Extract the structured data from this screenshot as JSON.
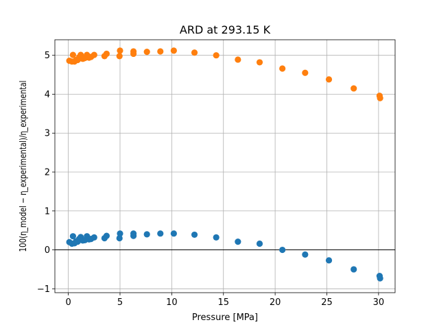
{
  "chart_data": {
    "type": "scatter",
    "title": "ARD at 293.15 K",
    "xlabel": "Pressure [MPa]",
    "ylabel": "100(η_model − η_experimental)/η_experimental",
    "xlim": [
      -1.3,
      31.6
    ],
    "ylim": [
      -1.1,
      5.4
    ],
    "xticks": [
      0,
      5,
      10,
      15,
      20,
      25,
      30
    ],
    "yticks": [
      -1,
      0,
      1,
      2,
      3,
      4,
      5
    ],
    "grid": true,
    "horizontal_reference_line": 0,
    "legend": "none",
    "series": [
      {
        "color": "#1f77b4",
        "points": [
          [
            0.1,
            0.2
          ],
          [
            0.35,
            0.16
          ],
          [
            0.45,
            0.35
          ],
          [
            0.6,
            0.17
          ],
          [
            0.75,
            0.22
          ],
          [
            0.9,
            0.21
          ],
          [
            1.05,
            0.28
          ],
          [
            1.2,
            0.33
          ],
          [
            1.4,
            0.24
          ],
          [
            1.6,
            0.25
          ],
          [
            1.8,
            0.35
          ],
          [
            2.0,
            0.27
          ],
          [
            2.2,
            0.28
          ],
          [
            2.5,
            0.32
          ],
          [
            3.5,
            0.3
          ],
          [
            3.7,
            0.36
          ],
          [
            4.95,
            0.3
          ],
          [
            5.0,
            0.42
          ],
          [
            6.3,
            0.36
          ],
          [
            6.3,
            0.42
          ],
          [
            7.6,
            0.4
          ],
          [
            8.9,
            0.42
          ],
          [
            10.2,
            0.42
          ],
          [
            12.2,
            0.39
          ],
          [
            14.3,
            0.32
          ],
          [
            16.4,
            0.21
          ],
          [
            18.5,
            0.16
          ],
          [
            20.7,
            0.0
          ],
          [
            22.9,
            -0.12
          ],
          [
            25.2,
            -0.27
          ],
          [
            27.6,
            -0.5
          ],
          [
            30.1,
            -0.67
          ],
          [
            30.15,
            -0.73
          ]
        ]
      },
      {
        "color": "#ff7f0e",
        "points": [
          [
            0.1,
            4.86
          ],
          [
            0.35,
            4.84
          ],
          [
            0.45,
            5.01
          ],
          [
            0.6,
            4.84
          ],
          [
            0.75,
            4.88
          ],
          [
            0.9,
            4.88
          ],
          [
            1.05,
            4.95
          ],
          [
            1.2,
            5.01
          ],
          [
            1.4,
            4.91
          ],
          [
            1.6,
            4.93
          ],
          [
            1.8,
            5.01
          ],
          [
            2.0,
            4.94
          ],
          [
            2.2,
            4.96
          ],
          [
            2.5,
            5.01
          ],
          [
            3.5,
            4.98
          ],
          [
            3.7,
            5.04
          ],
          [
            4.95,
            4.98
          ],
          [
            5.0,
            5.12
          ],
          [
            6.3,
            5.04
          ],
          [
            6.3,
            5.1
          ],
          [
            7.6,
            5.09
          ],
          [
            8.9,
            5.1
          ],
          [
            10.2,
            5.12
          ],
          [
            12.2,
            5.07
          ],
          [
            14.3,
            5.0
          ],
          [
            16.4,
            4.89
          ],
          [
            18.5,
            4.82
          ],
          [
            20.7,
            4.66
          ],
          [
            22.9,
            4.55
          ],
          [
            25.2,
            4.38
          ],
          [
            27.6,
            4.15
          ],
          [
            30.1,
            3.96
          ],
          [
            30.15,
            3.9
          ]
        ]
      }
    ]
  }
}
